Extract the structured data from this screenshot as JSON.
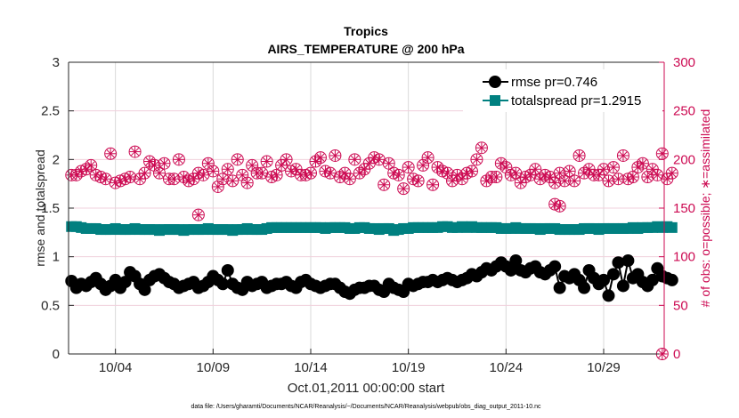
{
  "chart_data": {
    "type": "line",
    "title": "Tropics",
    "subtitle": "AIRS_TEMPERATURE @ 200 hPa",
    "xlabel": "Oct.01,2011 00:00:00 start",
    "ylabel": "rmse and totalspread",
    "y2label": "# of obs: o=possible; ∗=assimilated",
    "footer": "data file: /Users/gharamti/Documents/NCAR/Reanalysis/~/Documents/NCAR/Reanalysis/webpub/obs_diag_output_2011-10.nc",
    "x_unit": "days since Oct.01,2011 00:00:00",
    "xlim": [
      0.6,
      31.1
    ],
    "ylim": [
      0,
      3
    ],
    "y2lim": [
      0,
      300
    ],
    "xticks": [
      {
        "value": 3,
        "label": "10/04"
      },
      {
        "value": 8,
        "label": "10/09"
      },
      {
        "value": 13,
        "label": "10/14"
      },
      {
        "value": 18,
        "label": "10/19"
      },
      {
        "value": 23,
        "label": "10/24"
      },
      {
        "value": 28,
        "label": "10/29"
      }
    ],
    "yticks": [
      "0",
      "0.5",
      "1",
      "1.5",
      "2",
      "2.5",
      "3"
    ],
    "y2ticks": [
      "0",
      "50",
      "100",
      "150",
      "200",
      "250",
      "300"
    ],
    "grid": true,
    "legend_position": "top-right",
    "x_start": 0.75,
    "x_step": 0.25,
    "series": [
      {
        "name": "rmse pr=0.746",
        "color": "#000000",
        "marker": "circle",
        "axis": "left",
        "values": [
          0.75,
          0.68,
          0.72,
          0.7,
          0.74,
          0.78,
          0.72,
          0.66,
          0.7,
          0.76,
          0.68,
          0.74,
          0.84,
          0.8,
          0.72,
          0.66,
          0.76,
          0.8,
          0.82,
          0.78,
          0.74,
          0.72,
          0.68,
          0.7,
          0.72,
          0.74,
          0.68,
          0.7,
          0.74,
          0.8,
          0.76,
          0.72,
          0.86,
          0.72,
          0.68,
          0.66,
          0.74,
          0.7,
          0.72,
          0.74,
          0.68,
          0.7,
          0.72,
          0.72,
          0.74,
          0.7,
          0.68,
          0.74,
          0.76,
          0.72,
          0.7,
          0.68,
          0.7,
          0.72,
          0.72,
          0.68,
          0.64,
          0.62,
          0.66,
          0.68,
          0.68,
          0.7,
          0.7,
          0.66,
          0.64,
          0.72,
          0.68,
          0.66,
          0.64,
          0.72,
          0.7,
          0.72,
          0.74,
          0.74,
          0.76,
          0.74,
          0.76,
          0.78,
          0.76,
          0.74,
          0.76,
          0.78,
          0.82,
          0.8,
          0.84,
          0.88,
          0.86,
          0.9,
          0.94,
          0.9,
          0.86,
          0.96,
          0.86,
          0.84,
          0.88,
          0.9,
          0.84,
          0.82,
          0.86,
          0.9,
          0.68,
          0.8,
          0.78,
          0.82,
          0.76,
          0.68,
          0.86,
          0.78,
          0.72,
          0.76,
          0.6,
          0.82,
          0.94,
          0.7,
          0.96,
          0.78,
          0.82,
          0.74,
          0.7,
          0.76,
          0.88,
          0.8,
          0.78,
          0.76
        ]
      },
      {
        "name": "totalspread pr=1.2915",
        "color": "#008080",
        "marker": "square",
        "axis": "left",
        "values": [
          1.31,
          1.31,
          1.3,
          1.29,
          1.29,
          1.29,
          1.28,
          1.28,
          1.28,
          1.29,
          1.28,
          1.28,
          1.28,
          1.29,
          1.28,
          1.28,
          1.28,
          1.28,
          1.27,
          1.28,
          1.28,
          1.28,
          1.28,
          1.27,
          1.28,
          1.28,
          1.28,
          1.28,
          1.29,
          1.28,
          1.28,
          1.28,
          1.28,
          1.27,
          1.28,
          1.28,
          1.29,
          1.28,
          1.28,
          1.28,
          1.29,
          1.3,
          1.3,
          1.3,
          1.3,
          1.3,
          1.3,
          1.3,
          1.3,
          1.3,
          1.3,
          1.3,
          1.29,
          1.3,
          1.3,
          1.3,
          1.3,
          1.29,
          1.29,
          1.3,
          1.3,
          1.29,
          1.29,
          1.28,
          1.29,
          1.29,
          1.27,
          1.28,
          1.29,
          1.29,
          1.3,
          1.3,
          1.3,
          1.3,
          1.3,
          1.3,
          1.31,
          1.31,
          1.3,
          1.3,
          1.31,
          1.3,
          1.31,
          1.3,
          1.3,
          1.3,
          1.3,
          1.3,
          1.29,
          1.29,
          1.29,
          1.3,
          1.29,
          1.29,
          1.29,
          1.29,
          1.28,
          1.29,
          1.29,
          1.29,
          1.28,
          1.28,
          1.28,
          1.28,
          1.28,
          1.29,
          1.29,
          1.29,
          1.28,
          1.29,
          1.29,
          1.29,
          1.29,
          1.29,
          1.29,
          1.3,
          1.29,
          1.3,
          1.3,
          1.3,
          1.31,
          1.3,
          1.31,
          1.3
        ]
      },
      {
        "name": "# of obs (possible / assimilated)",
        "color": "#cc0a52",
        "marker": "circle-asterisk",
        "axis": "right",
        "values": [
          184,
          184,
          188,
          190,
          194,
          184,
          182,
          180,
          206,
          176,
          178,
          180,
          182,
          208,
          180,
          186,
          198,
          194,
          186,
          196,
          180,
          180,
          200,
          182,
          178,
          180,
          186,
          184,
          196,
          188,
          172,
          180,
          190,
          178,
          200,
          184,
          176,
          194,
          186,
          186,
          198,
          182,
          184,
          194,
          200,
          188,
          190,
          184,
          184,
          186,
          198,
          202,
          188,
          186,
          204,
          182,
          186,
          180,
          200,
          186,
          190,
          196,
          202,
          200,
          174,
          196,
          186,
          184,
          170,
          192,
          180,
          178,
          194,
          202,
          174,
          192,
          188,
          186,
          178,
          184,
          180,
          186,
          188,
          200,
          212,
          178,
          182,
          182,
          196,
          192,
          184,
          186,
          176,
          182,
          184,
          190,
          180,
          184,
          182,
          176,
          186,
          178,
          188,
          178,
          204,
          186,
          190,
          184,
          184,
          190,
          178,
          192,
          180,
          204,
          180,
          182,
          192,
          196,
          182,
          190,
          184,
          206,
          180,
          186
        ]
      }
    ],
    "outlier_points": [
      {
        "series": "# of obs",
        "x": 7.25,
        "value": 143
      },
      {
        "series": "# of obs",
        "x": 25.5,
        "value": 154
      },
      {
        "series": "# of obs",
        "x": 25.75,
        "value": 152
      },
      {
        "series": "# of obs",
        "x": 31.0,
        "value": 0
      }
    ]
  }
}
